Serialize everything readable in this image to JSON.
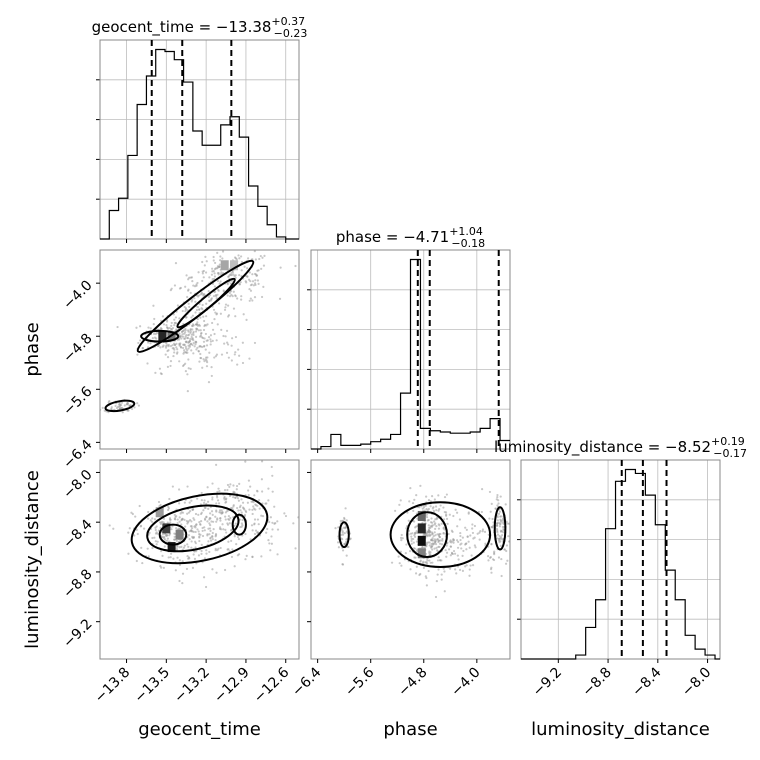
{
  "chart_data": {
    "type": "corner",
    "parameters": [
      {
        "name": "geocent_time",
        "axis_label": "geocent_time",
        "title_main": "geocent_time = −13.38",
        "title_sup": "+0.37",
        "title_sub": "−0.23",
        "range": [
          -14.0,
          -12.5
        ],
        "ticks": [
          -13.8,
          -13.5,
          -13.2,
          -12.9,
          -12.6
        ],
        "tick_labels": [
          "−13.8",
          "−13.5",
          "−13.2",
          "−12.9",
          "−12.6"
        ],
        "quantiles": [
          -13.61,
          -13.38,
          -13.01
        ],
        "hist_edges": [
          -14.0,
          -13.93,
          -13.86,
          -13.79,
          -13.72,
          -13.65,
          -13.58,
          -13.51,
          -13.44,
          -13.37,
          -13.3,
          -13.23,
          -13.16,
          -13.09,
          -13.02,
          -12.95,
          -12.88,
          -12.81,
          -12.74,
          -12.67,
          -12.6,
          -12.5
        ],
        "hist_counts": [
          0,
          14,
          20,
          41,
          66,
          80,
          93,
          92,
          88,
          77,
          53,
          46,
          46,
          56,
          60,
          50,
          26,
          16,
          7,
          1,
          0
        ]
      },
      {
        "name": "phase",
        "axis_label": "phase",
        "title_main": "phase = −4.71",
        "title_sup": "+1.04",
        "title_sub": "−0.18",
        "range": [
          -6.5,
          -3.5
        ],
        "ticks": [
          -6.4,
          -5.6,
          -4.8,
          -4.0
        ],
        "tick_labels": [
          "−6.4",
          "−5.6",
          "−4.8",
          "−4.0"
        ],
        "quantiles": [
          -4.89,
          -4.71,
          -3.67
        ],
        "hist_edges": [
          -6.5,
          -6.35,
          -6.2,
          -6.05,
          -5.9,
          -5.75,
          -5.6,
          -5.45,
          -5.3,
          -5.15,
          -5.0,
          -4.85,
          -4.7,
          -4.55,
          -4.4,
          -4.25,
          -4.1,
          -3.95,
          -3.8,
          -3.65,
          -3.5
        ],
        "hist_counts": [
          0,
          2,
          12,
          3,
          3,
          4,
          6,
          8,
          12,
          46,
          156,
          17,
          15,
          14,
          13,
          13,
          14,
          17,
          25,
          7
        ]
      },
      {
        "name": "luminosity_distance",
        "axis_label": "luminosity_distance",
        "title_main": "luminosity_distance = −8.52",
        "title_sup": "+0.19",
        "title_sub": "−0.17",
        "range": [
          -9.5,
          -7.9
        ],
        "ticks": [
          -9.2,
          -8.8,
          -8.4,
          -8.0
        ],
        "tick_labels": [
          "−9.2",
          "−8.8",
          "−8.4",
          "−8.0"
        ],
        "quantiles": [
          -8.69,
          -8.52,
          -8.33
        ],
        "hist_edges": [
          -9.5,
          -9.06,
          -8.98,
          -8.9,
          -8.82,
          -8.74,
          -8.66,
          -8.58,
          -8.5,
          -8.42,
          -8.34,
          -8.26,
          -8.18,
          -8.1,
          -8.02,
          -7.94,
          -7.9
        ],
        "hist_counts": [
          0,
          2,
          16,
          30,
          66,
          90,
          96,
          94,
          83,
          68,
          45,
          30,
          12,
          5,
          2,
          0
        ]
      }
    ],
    "pairs": [
      {
        "x": "geocent_time",
        "y": "phase",
        "clusters": [
          {
            "cx": -13.45,
            "cy": -4.8,
            "sx": 0.12,
            "sy": 0.12,
            "n": 180
          },
          {
            "cx": -13.25,
            "cy": -4.4,
            "sx": 0.12,
            "sy": 0.25,
            "n": 160
          },
          {
            "cx": -13.0,
            "cy": -3.9,
            "sx": 0.15,
            "sy": 0.2,
            "n": 200
          },
          {
            "cx": -13.3,
            "cy": -5.0,
            "sx": 0.2,
            "sy": 0.22,
            "n": 140
          },
          {
            "cx": -13.85,
            "cy": -5.85,
            "sx": 0.06,
            "sy": 0.05,
            "n": 60
          }
        ],
        "contours": [
          {
            "cx": -13.28,
            "cy": -4.35,
            "rx": 0.55,
            "ry": 0.14,
            "angle": -38
          },
          {
            "cx": -13.2,
            "cy": -4.3,
            "rx": 0.28,
            "ry": 0.08,
            "angle": -40
          },
          {
            "cx": -13.55,
            "cy": -4.8,
            "rx": 0.14,
            "ry": 0.08,
            "angle": 0
          },
          {
            "cx": -13.85,
            "cy": -5.85,
            "rx": 0.11,
            "ry": 0.07,
            "angle": -10
          }
        ],
        "dark_cells": [
          {
            "x": -13.53,
            "y": -4.8,
            "level": 0.85
          },
          {
            "x": -13.46,
            "y": -4.8,
            "level": 0.55
          },
          {
            "x": -13.06,
            "y": -3.73,
            "level": 0.35
          },
          {
            "x": -12.99,
            "y": -3.73,
            "level": 0.25
          }
        ]
      },
      {
        "x": "geocent_time",
        "y": "luminosity_distance",
        "clusters": [
          {
            "cx": -13.45,
            "cy": -8.5,
            "sx": 0.15,
            "sy": 0.12,
            "n": 260
          },
          {
            "cx": -13.1,
            "cy": -8.45,
            "sx": 0.22,
            "sy": 0.15,
            "n": 200
          },
          {
            "cx": -12.95,
            "cy": -8.3,
            "sx": 0.15,
            "sy": 0.15,
            "n": 150
          }
        ],
        "contours": [
          {
            "cx": -13.25,
            "cy": -8.45,
            "rx": 0.52,
            "ry": 0.26,
            "angle": -12
          },
          {
            "cx": -13.3,
            "cy": -8.45,
            "rx": 0.35,
            "ry": 0.17,
            "angle": -12
          },
          {
            "cx": -13.45,
            "cy": -8.5,
            "rx": 0.1,
            "ry": 0.08,
            "angle": 0
          },
          {
            "cx": -12.95,
            "cy": -8.42,
            "rx": 0.05,
            "ry": 0.08,
            "angle": 0
          }
        ],
        "dark_cells": [
          {
            "x": -13.5,
            "y": -8.45,
            "level": 0.75
          },
          {
            "x": -13.46,
            "y": -8.6,
            "level": 0.9
          },
          {
            "x": -13.4,
            "y": -8.5,
            "level": 0.5
          },
          {
            "x": -13.55,
            "y": -8.32,
            "level": 0.4
          }
        ]
      },
      {
        "x": "phase",
        "y": "luminosity_distance",
        "clusters": [
          {
            "cx": -4.78,
            "cy": -8.5,
            "sx": 0.15,
            "sy": 0.15,
            "n": 300
          },
          {
            "cx": -6.0,
            "cy": -8.5,
            "sx": 0.05,
            "sy": 0.1,
            "n": 60
          },
          {
            "cx": -3.65,
            "cy": -8.45,
            "sx": 0.08,
            "sy": 0.15,
            "n": 120
          },
          {
            "cx": -4.3,
            "cy": -8.55,
            "sx": 0.3,
            "sy": 0.15,
            "n": 150
          }
        ],
        "contours": [
          {
            "cx": -4.55,
            "cy": -8.5,
            "rx": 0.75,
            "ry": 0.26,
            "angle": 0
          },
          {
            "cx": -4.75,
            "cy": -8.5,
            "rx": 0.3,
            "ry": 0.18,
            "angle": 0
          },
          {
            "cx": -6.0,
            "cy": -8.5,
            "rx": 0.07,
            "ry": 0.1,
            "angle": 0
          },
          {
            "cx": -3.65,
            "cy": -8.45,
            "rx": 0.08,
            "ry": 0.17,
            "angle": 0
          }
        ],
        "dark_cells": [
          {
            "x": -4.83,
            "y": -8.55,
            "level": 0.95
          },
          {
            "x": -4.83,
            "y": -8.45,
            "level": 0.85
          },
          {
            "x": -4.83,
            "y": -8.35,
            "level": 0.6
          },
          {
            "x": -4.83,
            "y": -8.65,
            "level": 0.5
          }
        ]
      }
    ]
  }
}
